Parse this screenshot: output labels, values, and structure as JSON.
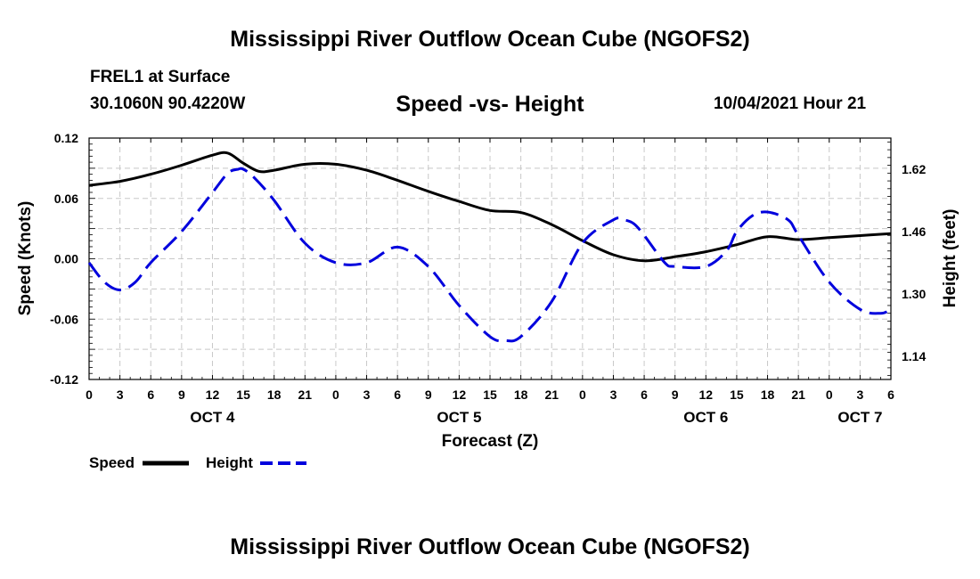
{
  "page": {
    "top_title": "Mississippi River Outflow Ocean Cube (NGOFS2)",
    "bottom_title": "Mississippi River Outflow Ocean Cube (NGOFS2)",
    "station": "FREL1 at Surface",
    "coords": "30.1060N  90.4220W",
    "timestamp": "10/04/2021 Hour 21"
  },
  "colors": {
    "speed": "#000000",
    "height": "#0000dd",
    "grid": "#c8c8c8"
  },
  "chart_data": {
    "type": "line",
    "title": "Speed -vs- Height",
    "xlabel": "Forecast (Z)",
    "ylabel_left": "Speed (Knots)",
    "ylabel_right": "Height (feet)",
    "xlim": [
      0,
      78
    ],
    "ylim_left": [
      -0.12,
      0.12
    ],
    "ylim_right": [
      1.08,
      1.7
    ],
    "x_tick_labels": [
      "0",
      "3",
      "6",
      "9",
      "12",
      "15",
      "18",
      "21",
      "0",
      "3",
      "6",
      "9",
      "12",
      "15",
      "18",
      "21",
      "0",
      "3",
      "6",
      "9",
      "12",
      "15",
      "18",
      "21",
      "0",
      "3",
      "6"
    ],
    "y_left_ticks": [
      "0.12",
      "0.06",
      "0.00",
      "-0.06",
      "-0.12"
    ],
    "y_left_tick_values": [
      0.12,
      0.06,
      0.0,
      -0.06,
      -0.12
    ],
    "y_right_ticks": [
      "1.62",
      "1.46",
      "1.30",
      "1.14"
    ],
    "y_right_tick_values": [
      1.62,
      1.46,
      1.3,
      1.14
    ],
    "day_labels": [
      {
        "label": "OCT 4",
        "x": 12
      },
      {
        "label": "OCT 5",
        "x": 36
      },
      {
        "label": "OCT 6",
        "x": 60
      },
      {
        "label": "OCT 7",
        "x": 75
      }
    ],
    "legend": [
      {
        "name": "Speed",
        "style": "solid"
      },
      {
        "name": "Height",
        "style": "dashed"
      }
    ],
    "series": [
      {
        "name": "Speed",
        "axis": "left",
        "x": [
          0,
          3,
          6,
          9,
          12,
          13.5,
          15,
          16.5,
          18,
          21,
          24,
          27,
          30,
          33,
          36,
          39,
          42,
          45,
          48,
          51,
          54,
          57,
          60,
          63,
          66,
          69,
          72,
          75,
          78
        ],
        "values": [
          0.073,
          0.077,
          0.084,
          0.093,
          0.103,
          0.105,
          0.095,
          0.087,
          0.088,
          0.094,
          0.094,
          0.088,
          0.078,
          0.067,
          0.057,
          0.048,
          0.046,
          0.034,
          0.018,
          0.004,
          -0.002,
          0.002,
          0.007,
          0.014,
          0.022,
          0.019,
          0.021,
          0.023,
          0.025
        ]
      },
      {
        "name": "Height",
        "axis": "right",
        "x": [
          0,
          1.5,
          3,
          4.5,
          6,
          9,
          12,
          13.5,
          14.5,
          15,
          16,
          18,
          21,
          24,
          27,
          30,
          33,
          36,
          39,
          40.5,
          42,
          45,
          48,
          51,
          52,
          53,
          54,
          56,
          57,
          60,
          62,
          63,
          64.5,
          66,
          68,
          69,
          72,
          75,
          77,
          78
        ],
        "values": [
          1.38,
          1.33,
          1.31,
          1.33,
          1.38,
          1.46,
          1.56,
          1.61,
          1.62,
          1.62,
          1.6,
          1.54,
          1.43,
          1.38,
          1.38,
          1.42,
          1.37,
          1.27,
          1.19,
          1.18,
          1.19,
          1.28,
          1.43,
          1.49,
          1.49,
          1.48,
          1.45,
          1.38,
          1.37,
          1.37,
          1.41,
          1.46,
          1.5,
          1.51,
          1.49,
          1.45,
          1.33,
          1.26,
          1.25,
          1.26
        ]
      }
    ]
  }
}
